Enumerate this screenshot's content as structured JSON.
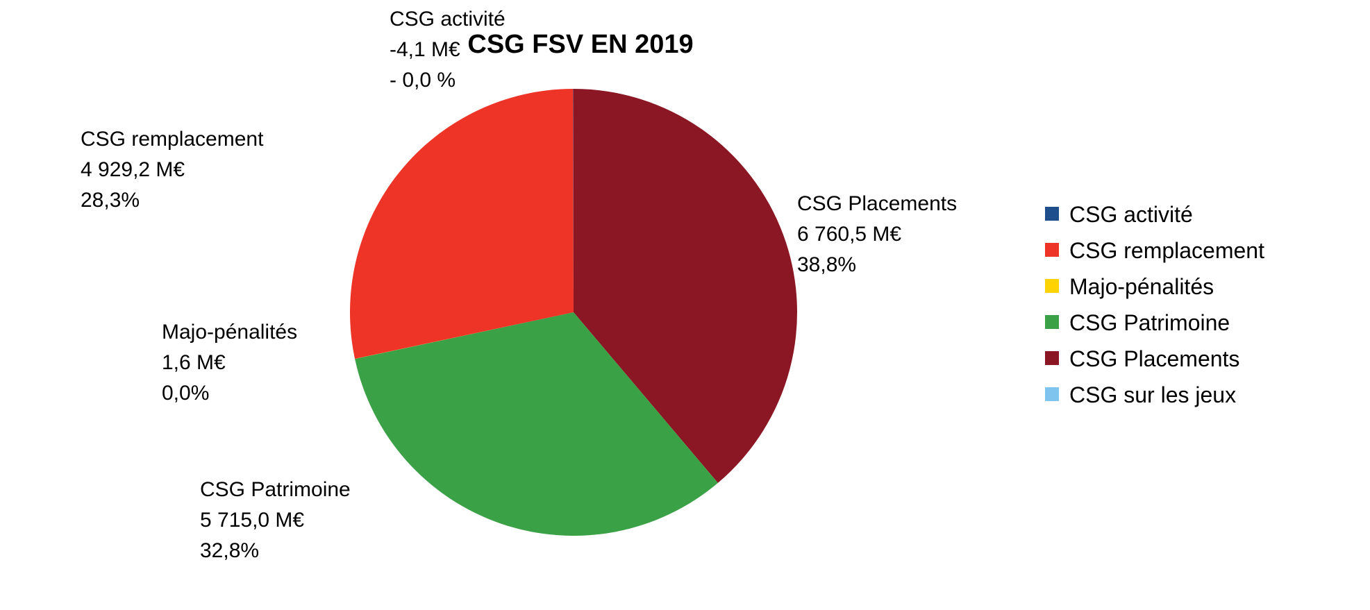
{
  "chart_data": {
    "type": "pie",
    "title": "CSG FSV EN 2019",
    "legend_position": "right",
    "start_angle_deg": 0,
    "direction": "clockwise",
    "slices": [
      {
        "name": "CSG Placements",
        "value": 6760.5,
        "value_label": "6 760,5 M€",
        "percent_label": "38,8%",
        "color": "#8B1724"
      },
      {
        "name": "CSG Patrimoine",
        "value": 5715.0,
        "value_label": "5 715,0 M€",
        "percent_label": "32,8%",
        "color": "#3BA146"
      },
      {
        "name": "Majo-pénalités",
        "value": 1.6,
        "value_label": "1,6 M€",
        "percent_label": "0,0%",
        "color": "#FFD300"
      },
      {
        "name": "CSG remplacement",
        "value": 4929.2,
        "value_label": "4 929,2 M€",
        "percent_label": "28,3%",
        "color": "#EE3427"
      },
      {
        "name": "CSG activité",
        "value": -4.1,
        "value_label": "-4,1 M€",
        "percent_label": "- 0,0 %",
        "color": "#1F4E8C"
      }
    ],
    "legend": [
      {
        "name": "CSG activité",
        "color": "#1F4E8C"
      },
      {
        "name": "CSG remplacement",
        "color": "#EE3427"
      },
      {
        "name": "Majo-pénalités",
        "color": "#FFD300"
      },
      {
        "name": "CSG Patrimoine",
        "color": "#3BA146"
      },
      {
        "name": "CSG Placements",
        "color": "#8B1724"
      },
      {
        "name": "CSG sur les jeux",
        "color": "#7FC4EE"
      }
    ]
  }
}
